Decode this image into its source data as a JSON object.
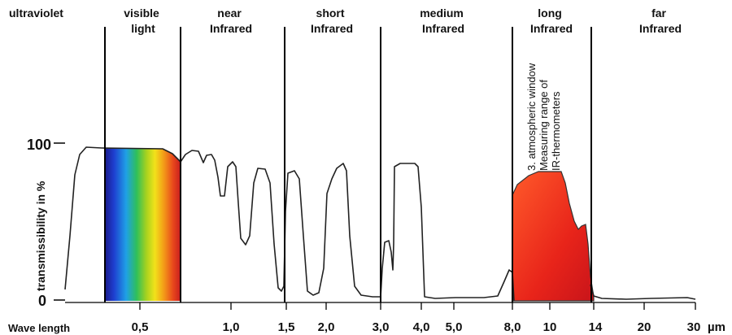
{
  "bands": [
    {
      "lines": [
        "ultraviolet"
      ]
    },
    {
      "lines": [
        "visible",
        "light"
      ]
    },
    {
      "lines": [
        "near",
        "Infrared"
      ]
    },
    {
      "lines": [
        "short",
        "Infrared"
      ]
    },
    {
      "lines": [
        "medium",
        "Infrared"
      ]
    },
    {
      "lines": [
        "long",
        "Infrared"
      ]
    },
    {
      "lines": [
        "far",
        "Infrared"
      ]
    }
  ],
  "y_axis": {
    "label": "transmissibility in %",
    "top": "100",
    "bottom": "0"
  },
  "x_axis": {
    "title": "Wave length",
    "unit": "µm",
    "ticks": [
      "0,5",
      "1,0",
      "1,5",
      "2,0",
      "3,0",
      "4,0",
      "5,0",
      "8,0",
      "10",
      "14",
      "20",
      "30"
    ]
  },
  "annotation": {
    "lines": [
      "3. atmospheric window",
      "Measuring range of",
      "IR-thermometers"
    ]
  },
  "colors": {
    "long_ir_fill": "#e02a1c",
    "curve": "#222222",
    "divider": "#000000"
  }
}
